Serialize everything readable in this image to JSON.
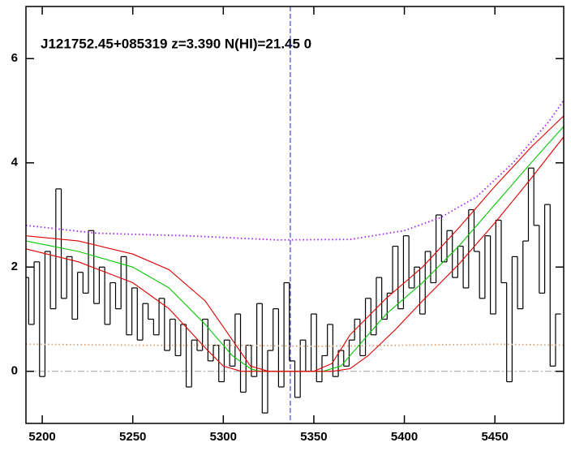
{
  "chart_data": {
    "type": "line",
    "title": "J121752.45+085319 z=3.390 N(HI)=21.45 0",
    "xlim": [
      5191,
      5488
    ],
    "ylim": [
      -1,
      7
    ],
    "xticks": [
      5200,
      5250,
      5300,
      5350,
      5400,
      5450
    ],
    "yticks": [
      0,
      2,
      4,
      6
    ],
    "reference_y": 0,
    "reference_y_color": "#a0a0a0",
    "reference_x": 5337,
    "reference_x_color": "#2020d0",
    "series": [
      {
        "style": "steps",
        "color": "#000000",
        "x": [
          5191,
          5194,
          5197,
          5200,
          5203,
          5206,
          5209,
          5212,
          5215,
          5218,
          5221,
          5224,
          5227,
          5230,
          5233,
          5236,
          5239,
          5242,
          5245,
          5248,
          5251,
          5254,
          5257,
          5260,
          5263,
          5266,
          5269,
          5272,
          5275,
          5278,
          5281,
          5284,
          5287,
          5290,
          5293,
          5296,
          5299,
          5302,
          5305,
          5308,
          5311,
          5314,
          5317,
          5320,
          5323,
          5326,
          5329,
          5332,
          5335,
          5338,
          5341,
          5344,
          5347,
          5350,
          5353,
          5356,
          5359,
          5362,
          5365,
          5368,
          5371,
          5374,
          5377,
          5380,
          5383,
          5386,
          5389,
          5392,
          5395,
          5398,
          5401,
          5404,
          5407,
          5410,
          5413,
          5416,
          5419,
          5422,
          5425,
          5428,
          5431,
          5434,
          5437,
          5440,
          5443,
          5446,
          5449,
          5452,
          5455,
          5458,
          5461,
          5464,
          5467,
          5470,
          5473,
          5476,
          5479,
          5482,
          5485
        ],
        "values": [
          1.8,
          0.9,
          2.1,
          -0.1,
          2.3,
          1.2,
          3.5,
          1.4,
          2.2,
          1.0,
          1.9,
          1.5,
          2.7,
          1.3,
          2.0,
          0.9,
          1.7,
          1.2,
          2.2,
          0.7,
          1.6,
          0.6,
          1.3,
          1.0,
          0.7,
          1.4,
          0.4,
          1.0,
          0.3,
          0.9,
          -0.3,
          0.6,
          0.4,
          1.0,
          0.2,
          0.5,
          -0.2,
          0.6,
          0.1,
          1.1,
          -0.4,
          0.5,
          -0.1,
          1.3,
          -0.8,
          0.4,
          1.2,
          -0.3,
          1.7,
          0.2,
          -0.5,
          0.6,
          0.0,
          1.1,
          -0.2,
          0.3,
          0.9,
          -0.1,
          0.4,
          0.1,
          0.6,
          1.0,
          0.3,
          1.4,
          0.7,
          1.8,
          1.0,
          1.5,
          2.4,
          1.2,
          2.6,
          1.6,
          2.0,
          1.1,
          2.3,
          1.7,
          3.0,
          2.1,
          2.7,
          1.8,
          2.4,
          1.6,
          3.1,
          2.3,
          1.4,
          2.6,
          1.1,
          2.9,
          1.7,
          -0.2,
          2.2,
          1.2,
          2.5,
          3.9,
          2.8,
          1.5,
          3.2,
          0.1,
          1.1
        ]
      },
      {
        "style": "dotted",
        "color": "#e0a070",
        "x": [
          5191,
          5250,
          5300,
          5350,
          5400,
          5450,
          5488
        ],
        "values": [
          0.52,
          0.5,
          0.5,
          0.48,
          0.5,
          0.52,
          0.5
        ]
      },
      {
        "style": "dotted",
        "color": "#a020f0",
        "x": [
          5191,
          5230,
          5280,
          5330,
          5370,
          5400,
          5420,
          5440,
          5460,
          5480,
          5488
        ],
        "values": [
          2.8,
          2.65,
          2.6,
          2.52,
          2.53,
          2.7,
          2.95,
          3.35,
          4.0,
          4.8,
          5.2
        ]
      },
      {
        "style": "solid",
        "color": "#00c800",
        "x": [
          5191,
          5220,
          5250,
          5270,
          5290,
          5305,
          5315,
          5320,
          5355,
          5365,
          5375,
          5390,
          5410,
          5430,
          5450,
          5470,
          5488
        ],
        "values": [
          2.5,
          2.3,
          2.0,
          1.6,
          0.9,
          0.3,
          0.05,
          0,
          0,
          0.1,
          0.5,
          1.1,
          1.7,
          2.4,
          3.2,
          4.0,
          4.7
        ]
      },
      {
        "style": "solid",
        "color": "#e00000",
        "x": [
          5191,
          5220,
          5250,
          5270,
          5290,
          5305,
          5315,
          5325,
          5350,
          5360,
          5370,
          5390,
          5410,
          5430,
          5450,
          5470,
          5488
        ],
        "values": [
          2.6,
          2.5,
          2.25,
          1.95,
          1.35,
          0.6,
          0.1,
          0,
          0,
          0.15,
          0.7,
          1.4,
          2.0,
          2.75,
          3.55,
          4.3,
          4.9
        ]
      },
      {
        "style": "solid",
        "color": "#e00000",
        "x": [
          5191,
          5220,
          5250,
          5270,
          5290,
          5300,
          5310,
          5360,
          5370,
          5380,
          5395,
          5410,
          5430,
          5450,
          5470,
          5488
        ],
        "values": [
          2.35,
          2.1,
          1.7,
          1.2,
          0.45,
          0.1,
          0,
          0,
          0.05,
          0.3,
          0.8,
          1.35,
          2.05,
          2.85,
          3.7,
          4.5
        ]
      }
    ]
  }
}
